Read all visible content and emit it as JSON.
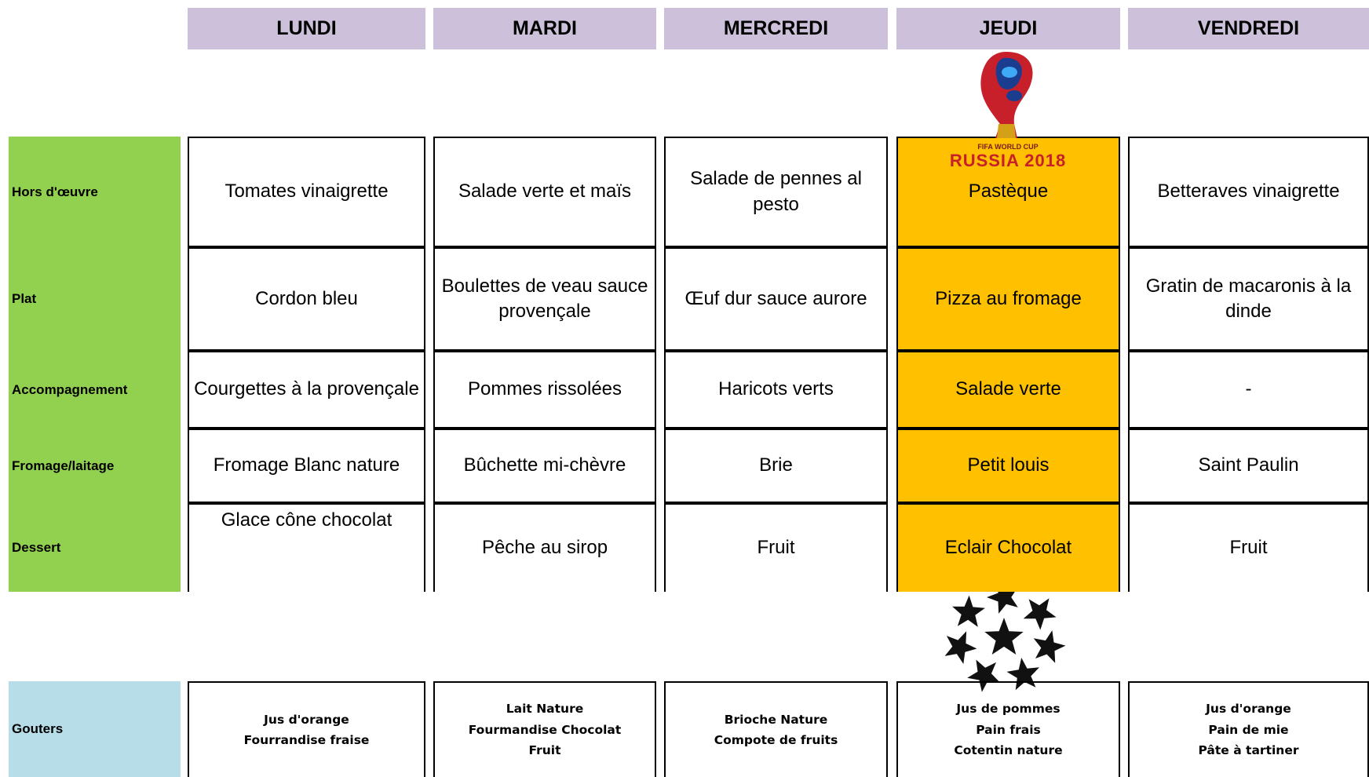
{
  "header": {
    "days": [
      "LUNDI",
      "MARDI",
      "MERCREDI",
      "JEUDI",
      "VENDREDI"
    ]
  },
  "menu": [
    {
      "label": "Hors d'œuvre",
      "cells": [
        "Tomates vinaigrette",
        "Salade verte et maïs",
        "Salade de pennes al pesto",
        "Pastèque",
        "Betteraves vinaigrette"
      ]
    },
    {
      "label": "Plat",
      "cells": [
        "Cordon bleu",
        "Boulettes de veau sauce provençale",
        "Œuf dur sauce aurore",
        "Pizza au fromage",
        "Gratin de macaronis à la dinde"
      ]
    },
    {
      "label": "Accompagnement",
      "cells": [
        "Courgettes à la provençale",
        "Pommes rissolées",
        "Haricots verts",
        "Salade verte",
        "-"
      ]
    },
    {
      "label": "Fromage/laitage",
      "cells": [
        "Fromage Blanc nature",
        "Bûchette mi-chèvre",
        "Brie",
        "Petit louis",
        "Saint Paulin"
      ]
    },
    {
      "label": "Dessert",
      "cells": [
        "Glace cône chocolat",
        "Pêche au sirop",
        "Fruit",
        "Eclair Chocolat",
        "Fruit"
      ]
    }
  ],
  "gouters": {
    "label": "Gouters",
    "cells": [
      [
        "Jus d'orange",
        "Fourrandise fraise"
      ],
      [
        "Lait Nature",
        "Fourmandise Chocolat",
        "Fruit"
      ],
      [
        "Brioche Nature",
        "Compote de fruits"
      ],
      [
        "Jus de pommes",
        "Pain frais",
        "Cotentin nature"
      ],
      [
        "Jus d'orange",
        "Pain de mie",
        "Pâte à tartiner"
      ]
    ]
  },
  "logo": {
    "top": "FIFA WORLD CUP",
    "bottom": "RUSSIA 2018"
  }
}
